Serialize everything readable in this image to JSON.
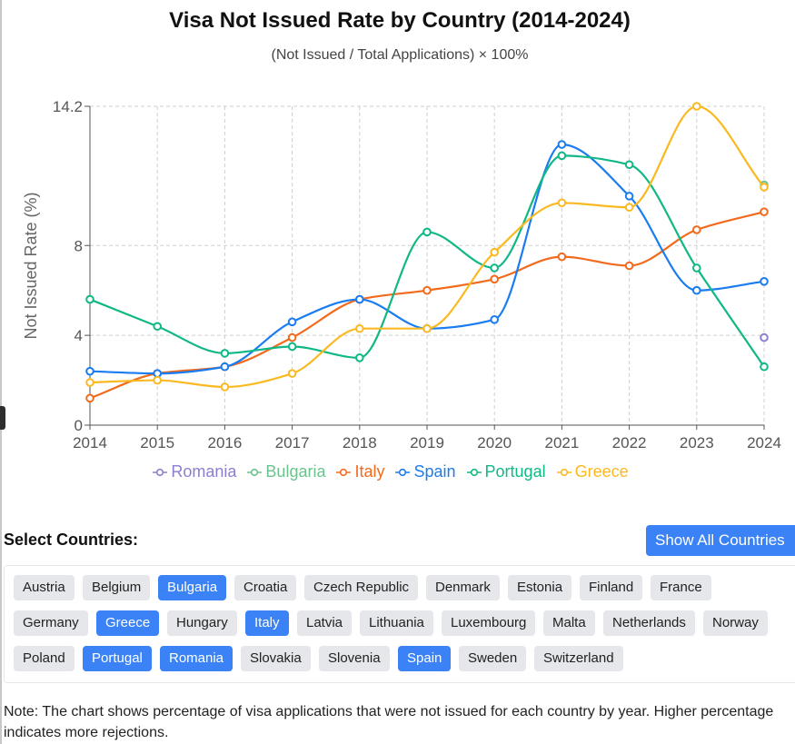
{
  "page": {
    "title": "Visa Not Issued Rate by Country (2014-2024)",
    "subtitle": "(Not Issued / Total Applications) × 100%",
    "select_label": "Select Countries:",
    "show_all_label": "Show All Countries",
    "note": "Note: The chart shows percentage of visa applications that were not issued for each country by year. Higher percentage indicates more rejections."
  },
  "chart_data": {
    "type": "line",
    "title": "Visa Not Issued Rate by Country (2014-2024)",
    "subtitle": "(Not Issued / Total Applications) × 100%",
    "xlabel": "",
    "ylabel": "Not Issued Rate (%)",
    "x": [
      "2014",
      "2015",
      "2016",
      "2017",
      "2018",
      "2019",
      "2020",
      "2021",
      "2022",
      "2023",
      "2024"
    ],
    "ylim": [
      0,
      14.2
    ],
    "yticks": [
      0,
      4,
      8,
      14.2
    ],
    "ytick_labels": [
      "0",
      "4",
      "8",
      "14.2"
    ],
    "grid": true,
    "legend": "bottom-center",
    "series": [
      {
        "name": "Romania",
        "color": "#8b7fd0",
        "values": [
          null,
          null,
          null,
          null,
          null,
          null,
          null,
          null,
          null,
          null,
          3.9
        ]
      },
      {
        "name": "Bulgaria",
        "color": "#6cc28f",
        "values": [
          null,
          null,
          null,
          null,
          null,
          null,
          null,
          null,
          null,
          null,
          10.7
        ]
      },
      {
        "name": "Italy",
        "color": "#f26b1d",
        "values": [
          1.2,
          2.3,
          2.6,
          3.9,
          5.6,
          6.0,
          6.5,
          7.5,
          7.1,
          8.7,
          9.5
        ]
      },
      {
        "name": "Spain",
        "color": "#1a7cf0",
        "values": [
          2.4,
          2.3,
          2.6,
          4.6,
          5.6,
          4.3,
          4.7,
          12.5,
          10.2,
          6.0,
          6.4
        ]
      },
      {
        "name": "Portugal",
        "color": "#10b886",
        "values": [
          5.6,
          4.4,
          3.2,
          3.5,
          3.0,
          8.6,
          7.0,
          12.0,
          11.6,
          7.0,
          2.6
        ]
      },
      {
        "name": "Greece",
        "color": "#fbb921",
        "values": [
          1.9,
          2.0,
          1.7,
          2.3,
          4.3,
          4.3,
          7.7,
          9.9,
          9.7,
          14.2,
          10.6
        ]
      }
    ]
  },
  "countries": [
    {
      "name": "Austria",
      "selected": false
    },
    {
      "name": "Belgium",
      "selected": false
    },
    {
      "name": "Bulgaria",
      "selected": true
    },
    {
      "name": "Croatia",
      "selected": false
    },
    {
      "name": "Czech Republic",
      "selected": false
    },
    {
      "name": "Denmark",
      "selected": false
    },
    {
      "name": "Estonia",
      "selected": false
    },
    {
      "name": "Finland",
      "selected": false
    },
    {
      "name": "France",
      "selected": false
    },
    {
      "name": "Germany",
      "selected": false
    },
    {
      "name": "Greece",
      "selected": true
    },
    {
      "name": "Hungary",
      "selected": false
    },
    {
      "name": "Italy",
      "selected": true
    },
    {
      "name": "Latvia",
      "selected": false
    },
    {
      "name": "Lithuania",
      "selected": false
    },
    {
      "name": "Luxembourg",
      "selected": false
    },
    {
      "name": "Malta",
      "selected": false
    },
    {
      "name": "Netherlands",
      "selected": false
    },
    {
      "name": "Norway",
      "selected": false
    },
    {
      "name": "Poland",
      "selected": false
    },
    {
      "name": "Portugal",
      "selected": true
    },
    {
      "name": "Romania",
      "selected": true
    },
    {
      "name": "Slovakia",
      "selected": false
    },
    {
      "name": "Slovenia",
      "selected": false
    },
    {
      "name": "Spain",
      "selected": true
    },
    {
      "name": "Sweden",
      "selected": false
    },
    {
      "name": "Switzerland",
      "selected": false
    }
  ]
}
